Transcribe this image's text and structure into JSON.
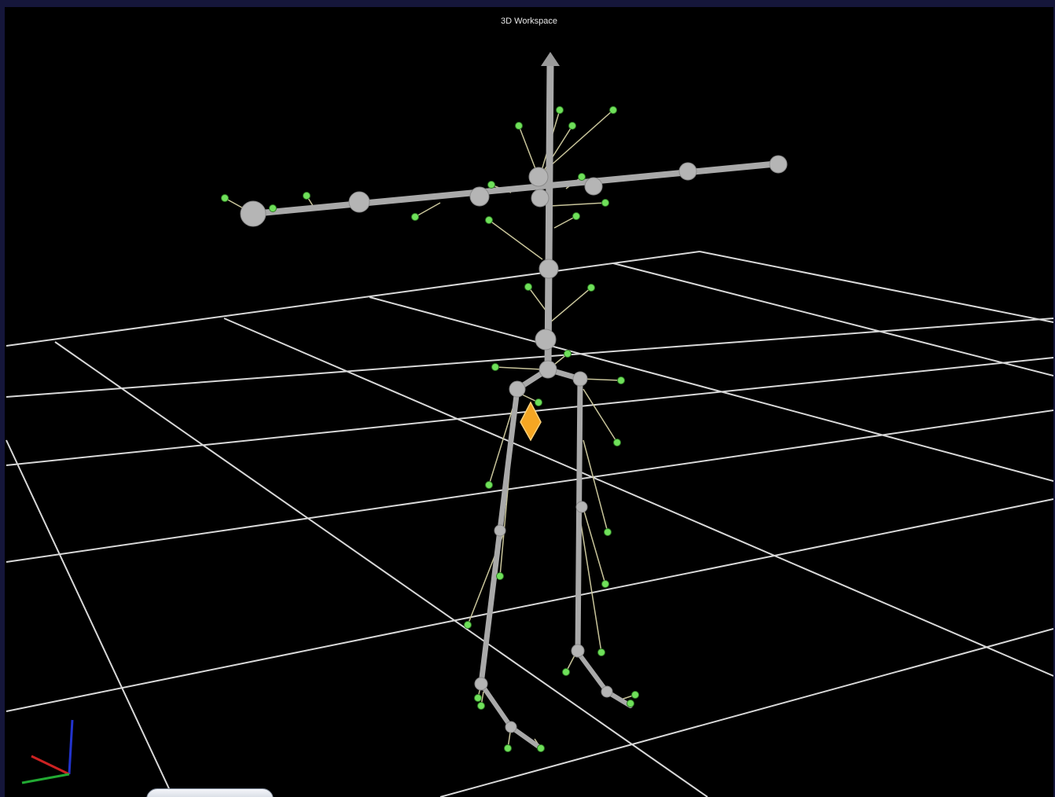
{
  "viewport": {
    "title": "3D Workspace"
  }
}
